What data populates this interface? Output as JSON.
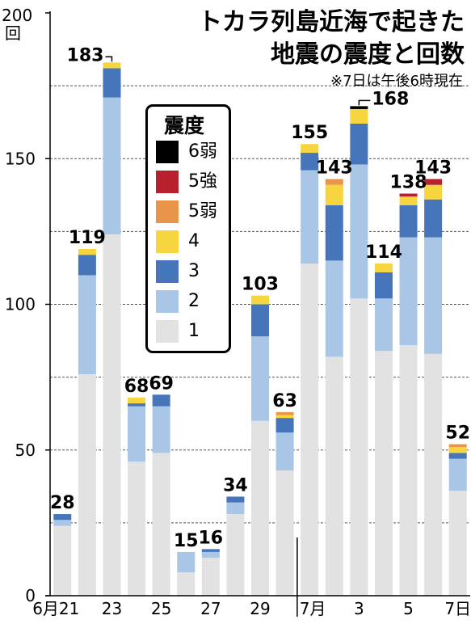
{
  "title_line1": "トカラ列島近海で起きた",
  "title_line2": "地震の震度と回数",
  "note": "※7日は午後6時現在",
  "colors": {
    "1": "#e2e2e2",
    "2": "#a9c6e6",
    "3": "#4676b9",
    "4": "#f7d53e",
    "5弱": "#e8954a",
    "5強": "#b8202e",
    "6弱": "#000000"
  },
  "chart_data": {
    "type": "bar",
    "stacked": true,
    "title": "トカラ列島近海で起きた地震の震度と回数",
    "ylabel": "回",
    "ylim": [
      0,
      200
    ],
    "yticks": [
      0,
      50,
      100,
      150,
      200
    ],
    "grid": true,
    "legend_title": "震度",
    "legend_position": "top-left",
    "categories": [
      "6/21",
      "6/22",
      "6/23",
      "6/24",
      "6/25",
      "6/26",
      "6/27",
      "6/28",
      "6/29",
      "6/30",
      "7/1",
      "7/2",
      "7/3",
      "7/4",
      "7/5",
      "7/6",
      "7/7"
    ],
    "x_tick_labels": [
      "6月21",
      "",
      "23",
      "",
      "25",
      "",
      "27",
      "",
      "29",
      "",
      "7月",
      "",
      "3",
      "",
      "5",
      "",
      "7日"
    ],
    "series": [
      {
        "name": "1",
        "values": [
          24,
          76,
          124,
          46,
          49,
          8,
          13,
          28,
          60,
          43,
          114,
          82,
          102,
          84,
          86,
          83,
          36
        ]
      },
      {
        "name": "2",
        "values": [
          2,
          34,
          47,
          19,
          16,
          7,
          2,
          4,
          29,
          13,
          32,
          33,
          46,
          18,
          37,
          40,
          11
        ]
      },
      {
        "name": "3",
        "values": [
          2,
          7,
          10,
          1,
          4,
          0,
          1,
          2,
          11,
          5,
          6,
          19,
          14,
          9,
          11,
          13,
          2
        ]
      },
      {
        "name": "4",
        "values": [
          0,
          2,
          2,
          2,
          0,
          0,
          0,
          0,
          3,
          1,
          3,
          7,
          5,
          3,
          3,
          5,
          2
        ]
      },
      {
        "name": "5弱",
        "values": [
          0,
          0,
          0,
          0,
          0,
          0,
          0,
          0,
          0,
          1,
          0,
          2,
          0,
          0,
          0,
          0,
          1
        ]
      },
      {
        "name": "5強",
        "values": [
          0,
          0,
          0,
          0,
          0,
          0,
          0,
          0,
          0,
          0,
          0,
          0,
          0,
          0,
          1,
          2,
          0
        ]
      },
      {
        "name": "6弱",
        "values": [
          0,
          0,
          0,
          0,
          0,
          0,
          0,
          0,
          0,
          0,
          0,
          0,
          1,
          0,
          0,
          0,
          0
        ]
      }
    ],
    "totals": [
      28,
      119,
      183,
      68,
      69,
      15,
      16,
      34,
      103,
      63,
      155,
      143,
      168,
      114,
      138,
      143,
      52
    ]
  }
}
